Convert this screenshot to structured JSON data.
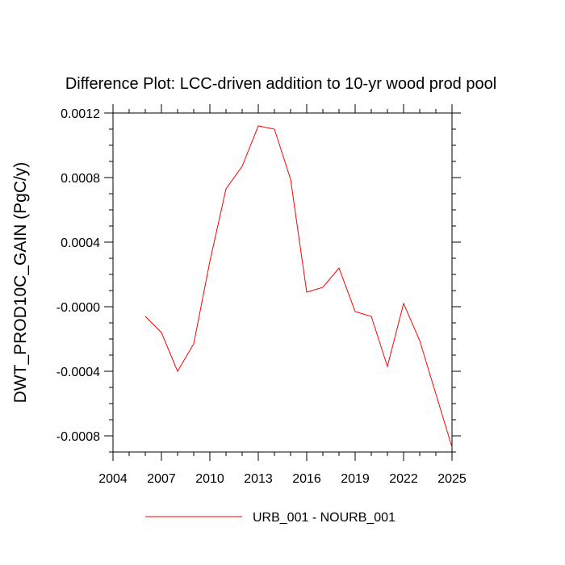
{
  "chart_data": {
    "type": "line",
    "title": "Difference Plot: LCC-driven addition to 10-yr wood prod pool",
    "xlabel": "",
    "ylabel": "DWT_PROD10C_GAIN  (PgC/y)",
    "xlim": [
      2004,
      2025
    ],
    "ylim": [
      -0.0009,
      0.0012
    ],
    "x_ticks": [
      2004,
      2007,
      2010,
      2013,
      2016,
      2019,
      2022,
      2025
    ],
    "x_tick_labels": [
      "2004",
      "2007",
      "2010",
      "2013",
      "2016",
      "2019",
      "2022",
      "2025"
    ],
    "y_ticks": [
      -0.0008,
      -0.0004,
      0.0,
      0.0004,
      0.0008,
      0.0012
    ],
    "y_tick_labels": [
      "-0.0008",
      "-0.0004",
      "-0.0000",
      "0.0004",
      "0.0008",
      "0.0012"
    ],
    "grid": false,
    "legend_position": "bottom",
    "series": [
      {
        "name": "URB_001 - NOURB_001",
        "color": "#ff0000",
        "x": [
          2006,
          2007,
          2008,
          2009,
          2010,
          2011,
          2012,
          2013,
          2014,
          2015,
          2016,
          2017,
          2018,
          2019,
          2020,
          2021,
          2022,
          2023,
          2024,
          2025
        ],
        "y": [
          -6e-05,
          -0.00016,
          -0.0004,
          -0.00023,
          0.00028,
          0.00073,
          0.00087,
          0.00112,
          0.0011,
          0.00079,
          9e-05,
          0.00012,
          0.00024,
          -3e-05,
          -6e-05,
          -0.00037,
          2e-05,
          -0.00021,
          -0.00054,
          -0.00087
        ]
      }
    ]
  }
}
